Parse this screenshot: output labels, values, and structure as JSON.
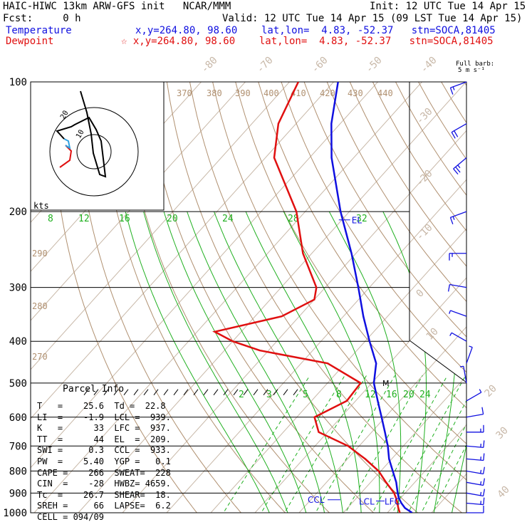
{
  "header": {
    "model_line": "HAIC-HIWC 13km ARW-GFS init   NCAR/MMM",
    "init_line": "Init: 12 UTC Tue 14 Apr 15",
    "fcst_line": "Fcst:     0 h",
    "valid_line": "Valid: 12 UTC Tue 14 Apr 15 (09 LST Tue 14 Apr 15)",
    "temp_label": "Temperature",
    "temp_info": "x,y=264.80, 98.60    lat,lon=  4.83, -52.37   stn=SOCA,81405",
    "dew_label": "Dewpoint",
    "dew_info": "☆ x,y=264.80, 98.60    lat,lon=  4.83, -52.37   stn=SOCA,81405",
    "barb_note_1": "Full barb:",
    "barb_note_2": "5 m s⁻¹",
    "kts": "kts"
  },
  "colors": {
    "temperature": "#1010e0",
    "dewpoint": "#e01010",
    "isotherm": "#c8b8a8",
    "theta": "#b09070",
    "mixing_ratio": "#20b020",
    "moist_adiabat": "#20b020"
  },
  "parcel_info": {
    "title": "Parcel Info",
    "rows": [
      "T   =    25.6  Td =  22.8",
      "LI  =    -1.9  LCL =  939.",
      "K   =      33  LFC =  937.",
      "TT  =      44  EL  =  209.",
      "SWI =     0.3  CCL =  933.",
      "PW  =    5.40  YGP =   0.1",
      "CAPE =    266  SWEAT=  228",
      "CIN  =    -28  HWBZ= 4659.",
      "Tc  =    26.7  SHEAR=  18.",
      "SREH =     66  LAPSE=  6.2",
      "CELL = 094/09"
    ]
  },
  "annotations": {
    "el": "EL",
    "ccl": "CCL",
    "lcl": "LCL",
    "lfc": "LFC",
    "m": "M"
  },
  "chart_data": {
    "type": "skew-t",
    "pressure_ticks": [
      "100",
      "200",
      "300",
      "400",
      "500",
      "600",
      "700",
      "800",
      "900",
      "1000"
    ],
    "isotherm_labels_top": [
      "-80",
      "-70",
      "-60",
      "-50",
      "-40"
    ],
    "isotherm_labels_right": [
      "-30",
      "-20",
      "-10",
      "0",
      "10",
      "20",
      "30",
      "40"
    ],
    "theta_labels_top": [
      "370",
      "380",
      "390",
      "400",
      "410",
      "420",
      "430",
      "440"
    ],
    "theta_labels_left": [
      "290",
      "280",
      "270"
    ],
    "mixing_ratio_labels_upper": [
      "8",
      "12",
      "16",
      "20",
      "24",
      "28",
      "32"
    ],
    "mixing_ratio_labels_lower": [
      "2",
      "3",
      "5",
      "8",
      "12",
      "16",
      "20",
      "24"
    ],
    "temperature_profile": {
      "p": [
        1000,
        975,
        950,
        925,
        900,
        850,
        800,
        750,
        700,
        650,
        600,
        550,
        500,
        450,
        400,
        350,
        300,
        250,
        200,
        150,
        125,
        100
      ],
      "t": [
        25.6,
        23.0,
        21.2,
        19.6,
        18.3,
        15.8,
        12.7,
        9.4,
        6.5,
        3.0,
        -0.8,
        -5.0,
        -9.5,
        -13.0,
        -19.0,
        -25.5,
        -32.5,
        -41.0,
        -52.0,
        -65.0,
        -72.0,
        -79.0
      ]
    },
    "dewpoint_profile": {
      "p": [
        1000,
        975,
        950,
        925,
        900,
        850,
        800,
        750,
        700,
        650,
        600,
        550,
        500,
        450,
        420,
        400,
        380,
        350,
        320,
        300,
        250,
        200,
        150,
        125,
        100
      ],
      "td": [
        22.8,
        21.5,
        20.3,
        19.0,
        17.5,
        13.5,
        9.5,
        4.0,
        -2.5,
        -12.0,
        -16.0,
        -12.0,
        -12.5,
        -24.0,
        -42.0,
        -50.0,
        -56.0,
        -44.0,
        -40.0,
        -42.0,
        -52.0,
        -62.0,
        -78.0,
        -84.0,
        -88.0
      ]
    },
    "wind_barbs": {
      "p": [
        1000,
        950,
        900,
        850,
        800,
        750,
        700,
        650,
        600,
        550,
        500,
        450,
        400,
        350,
        300,
        250,
        200,
        150,
        125,
        100
      ],
      "speed_ms": [
        8,
        15,
        15,
        15,
        15,
        15,
        15,
        15,
        10,
        5,
        5,
        5,
        5,
        5,
        10,
        15,
        15,
        25,
        20,
        15
      ],
      "dir_deg": [
        90,
        95,
        100,
        100,
        100,
        95,
        95,
        90,
        80,
        60,
        350,
        20,
        300,
        290,
        280,
        270,
        250,
        230,
        240,
        250
      ]
    },
    "hodograph": {
      "ring_labels": [
        "10",
        "20"
      ]
    }
  }
}
